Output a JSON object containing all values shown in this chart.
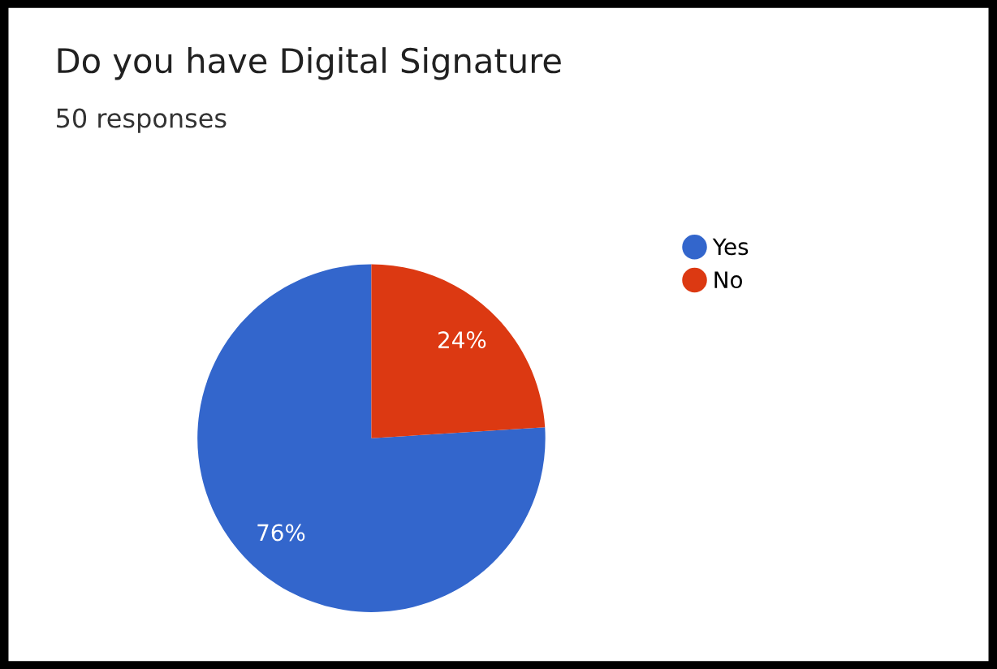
{
  "chart_data": {
    "type": "pie",
    "title": "Do you have Digital Signature",
    "subtitle": "50 responses",
    "categories": [
      "Yes",
      "No"
    ],
    "values": [
      76,
      24
    ],
    "colors": [
      "#3366cc",
      "#dc3912"
    ],
    "value_labels": [
      "76%",
      "24%"
    ],
    "legend": "top right"
  }
}
